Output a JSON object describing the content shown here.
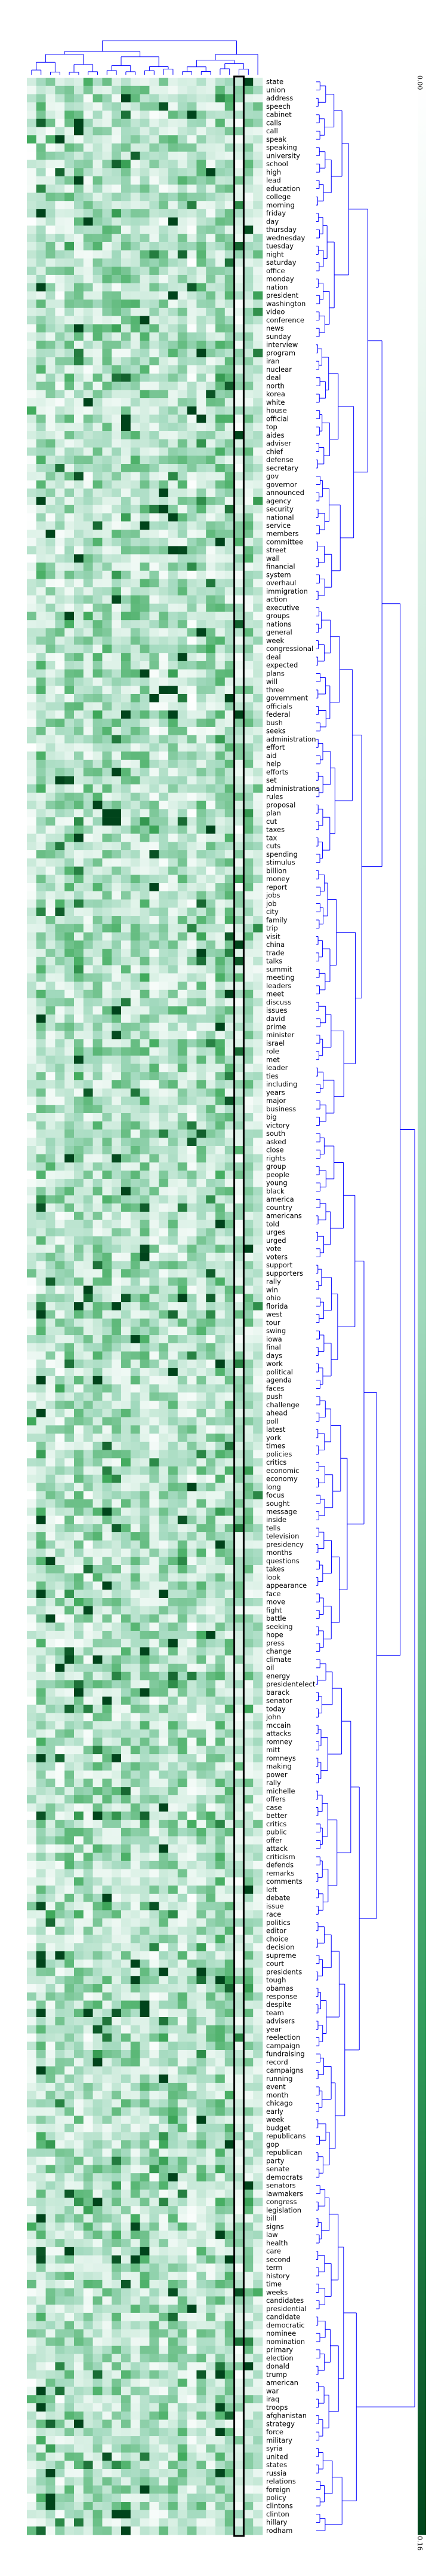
{
  "chart_data": {
    "type": "heatmap",
    "title": "",
    "xlabel": "",
    "ylabel": "",
    "color_min": "#ffffff",
    "color_mid": "#c6e8d8",
    "color_max": "#00441b",
    "dendrogram_color": "#0000ff",
    "highlight_column": 22,
    "n_columns": 25,
    "colorbar": {
      "ticks": [
        "0.00",
        "0.16"
      ],
      "range": [
        0.0,
        0.16
      ]
    },
    "rows": [
      "state",
      "union",
      "address",
      "speech",
      "cabinet",
      "calls",
      "call",
      "speak",
      "speaking",
      "university",
      "school",
      "high",
      "lead",
      "education",
      "college",
      "morning",
      "friday",
      "day",
      "thursday",
      "wednesday",
      "tuesday",
      "night",
      "saturday",
      "office",
      "monday",
      "nation",
      "president",
      "washington",
      "video",
      "conference",
      "news",
      "sunday",
      "interview",
      "program",
      "iran",
      "nuclear",
      "deal",
      "north",
      "korea",
      "white",
      "house",
      "official",
      "top",
      "aides",
      "adviser",
      "chief",
      "defense",
      "secretary",
      "gov",
      "governor",
      "announced",
      "agency",
      "security",
      "national",
      "service",
      "members",
      "committee",
      "street",
      "wall",
      "financial",
      "system",
      "overhaul",
      "immigration",
      "action",
      "executive",
      "groups",
      "nations",
      "general",
      "week",
      "congressional",
      "deal",
      "expected",
      "plans",
      "will",
      "three",
      "government",
      "officials",
      "federal",
      "bush",
      "seeks",
      "administration",
      "effort",
      "aid",
      "help",
      "efforts",
      "set",
      "administrations",
      "rules",
      "proposal",
      "plan",
      "cut",
      "taxes",
      "tax",
      "cuts",
      "spending",
      "stimulus",
      "billion",
      "money",
      "report",
      "jobs",
      "job",
      "city",
      "family",
      "trip",
      "visit",
      "china",
      "trade",
      "talks",
      "summit",
      "meeting",
      "leaders",
      "meet",
      "discuss",
      "issues",
      "david",
      "prime",
      "minister",
      "israel",
      "role",
      "met",
      "leader",
      "ties",
      "including",
      "years",
      "major",
      "business",
      "big",
      "victory",
      "south",
      "asked",
      "close",
      "rights",
      "group",
      "people",
      "young",
      "black",
      "america",
      "country",
      "americans",
      "told",
      "urges",
      "urged",
      "vote",
      "voters",
      "support",
      "supporters",
      "rally",
      "win",
      "ohio",
      "florida",
      "west",
      "tour",
      "swing",
      "iowa",
      "final",
      "days",
      "work",
      "political",
      "agenda",
      "faces",
      "push",
      "challenge",
      "ahead",
      "poll",
      "latest",
      "york",
      "times",
      "policies",
      "critics",
      "economic",
      "economy",
      "long",
      "focus",
      "sought",
      "message",
      "inside",
      "tells",
      "television",
      "presidency",
      "months",
      "questions",
      "takes",
      "look",
      "appearance",
      "face",
      "move",
      "fight",
      "battle",
      "seeking",
      "hope",
      "press",
      "change",
      "climate",
      "oil",
      "energy",
      "presidentelect",
      "barack",
      "senator",
      "today",
      "john",
      "mccain",
      "attacks",
      "romney",
      "mitt",
      "romneys",
      "making",
      "power",
      "rally",
      "michelle",
      "offers",
      "case",
      "better",
      "critics",
      "public",
      "offer",
      "attack",
      "criticism",
      "defends",
      "remarks",
      "comments",
      "left",
      "debate",
      "issue",
      "race",
      "politics",
      "editor",
      "choice",
      "decision",
      "supreme",
      "court",
      "presidents",
      "tough",
      "obamas",
      "response",
      "despite",
      "team",
      "advisers",
      "year",
      "reelection",
      "campaign",
      "fundraising",
      "record",
      "campaigns",
      "running",
      "event",
      "month",
      "chicago",
      "early",
      "week",
      "budget",
      "republicans",
      "gop",
      "republican",
      "party",
      "senate",
      "democrats",
      "senators",
      "lawmakers",
      "congress",
      "legislation",
      "bill",
      "signs",
      "law",
      "health",
      "care",
      "second",
      "term",
      "history",
      "time",
      "weeks",
      "candidates",
      "presidential",
      "candidate",
      "democratic",
      "nominee",
      "nomination",
      "primary",
      "election",
      "donald",
      "trump",
      "american",
      "war",
      "iraq",
      "troops",
      "afghanistan",
      "strategy",
      "force",
      "military",
      "syria",
      "united",
      "states",
      "russia",
      "relations",
      "foreign",
      "policy",
      "clintons",
      "clinton",
      "hillary",
      "rodham"
    ],
    "values": "generated"
  }
}
